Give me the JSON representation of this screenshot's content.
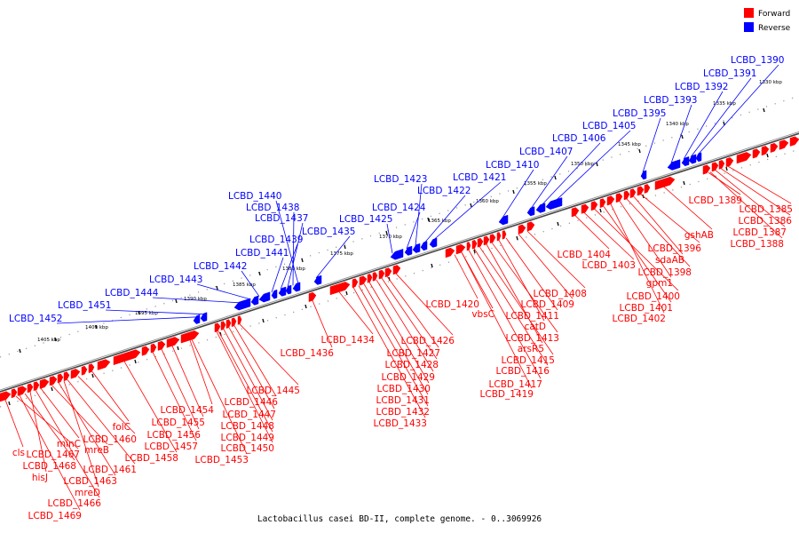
{
  "caption": "Lactobacillus casei BD-II, complete genome. - 0..3069926",
  "legend": [
    {
      "label": "Forward",
      "color": "#ff0000"
    },
    {
      "label": "Reverse",
      "color": "#0000ff"
    }
  ],
  "colors": {
    "forward": "#ff0000",
    "reverse": "#0000ff",
    "axis": "#555555"
  },
  "ticks": [
    "1405 kbp",
    "1400 kbp",
    "1395 kbp",
    "1390 kbp",
    "1385 kbp",
    "1380 kbp",
    "1375 kbp",
    "1370 kbp",
    "1365 kbp",
    "1360 kbp",
    "1355 kbp",
    "1350 kbp",
    "1345 kbp",
    "1340 kbp",
    "1335 kbp",
    "1330 kbp"
  ],
  "reverse_genes": [
    "LCBD_1452",
    "LCBD_1451",
    "LCBD_1444",
    "LCBD_1443",
    "LCBD_1442",
    "LCBD_1441",
    "LCBD_1439",
    "LCBD_1437",
    "LCBD_1438",
    "LCBD_1440",
    "LCBD_1435",
    "LCBD_1425",
    "LCBD_1424",
    "LCBD_1423",
    "LCBD_1422",
    "LCBD_1421",
    "LCBD_1410",
    "LCBD_1407",
    "LCBD_1406",
    "LCBD_1405",
    "LCBD_1395",
    "LCBD_1393",
    "LCBD_1392",
    "LCBD_1391",
    "LCBD_1390"
  ],
  "forward_genes": [
    "cls",
    "LCBD_1467",
    "LCBD_1468",
    "hisJ",
    "minC",
    "mreB",
    "LCBD_1463",
    "mreD",
    "LCBD_1466",
    "LCBD_1469",
    "folC",
    "LCBD_1460",
    "LCBD_1461",
    "LCBD_1458",
    "LCBD_1454",
    "LCBD_1455",
    "LCBD_1456",
    "LCBD_1457",
    "LCBD_1453",
    "LCBD_1445",
    "LCBD_1446",
    "LCBD_1447",
    "LCBD_1448",
    "LCBD_1449",
    "LCBD_1450",
    "LCBD_1436",
    "LCBD_1434",
    "LCBD_1426",
    "LCBD_1427",
    "LCBD_1428",
    "LCBD_1429",
    "LCBD_1430",
    "LCBD_1431",
    "LCBD_1432",
    "LCBD_1433",
    "LCBD_1420",
    "vbsC",
    "LCBD_1408",
    "LCBD_1409",
    "LCBD_1411",
    "catD",
    "LCBD_1413",
    "arsR5",
    "LCBD_1415",
    "LCBD_1416",
    "LCBD_1417",
    "LCBD_1419",
    "LCBD_1404",
    "LCBD_1403",
    "LCBD_1400",
    "LCBD_1401",
    "LCBD_1402",
    "gpm1",
    "LCBD_1398",
    "sdaAB",
    "LCBD_1396",
    "gshAB",
    "LCBD_1389",
    "LCBD_1385",
    "LCBD_1386",
    "LCBD_1387",
    "LCBD_1388"
  ]
}
